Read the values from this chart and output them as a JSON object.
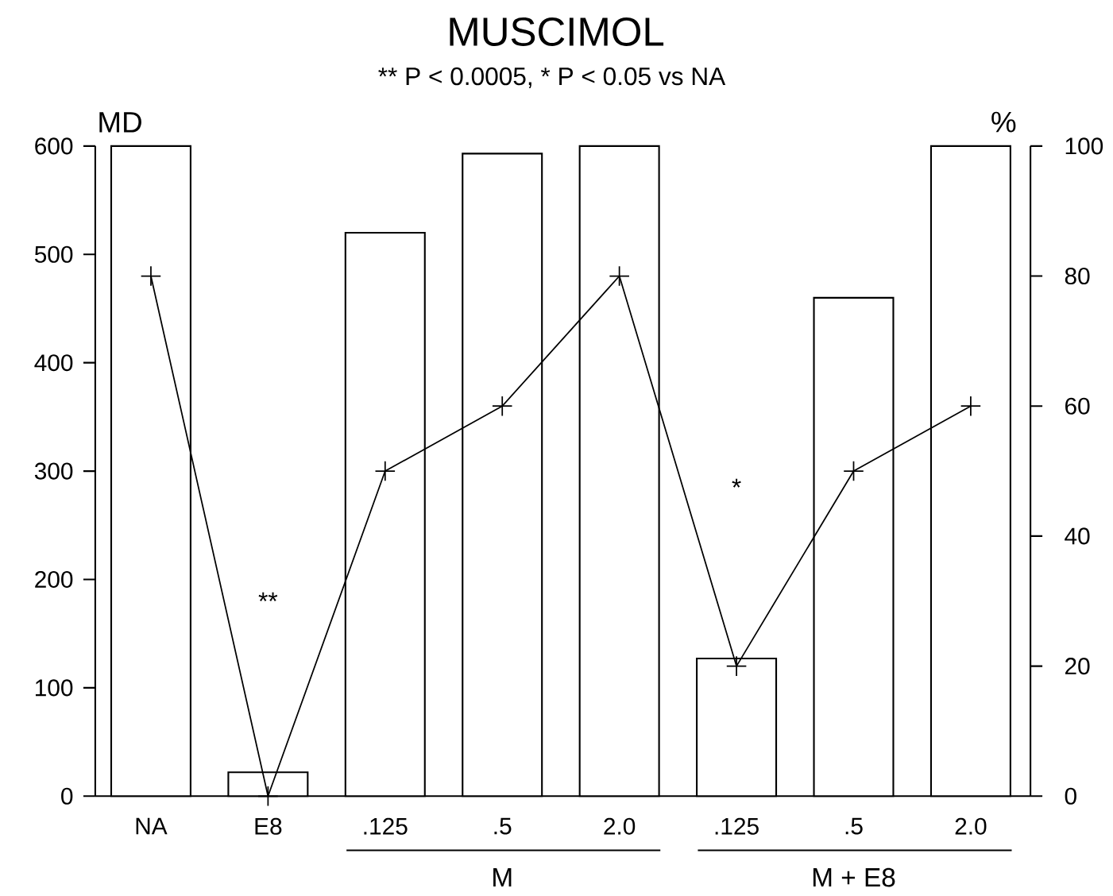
{
  "chart_data": {
    "type": "bar",
    "title": "MUSCIMOL",
    "subtitle": "** P < 0.0005, * P < 0.05 vs NA",
    "ylabel": "MD",
    "y2label": "%",
    "categories": [
      "NA",
      "E8",
      ".125",
      ".5",
      "2.0",
      ".125",
      ".5",
      "2.0"
    ],
    "series": [
      {
        "color": "#ffffff",
        "values": [
          600,
          22,
          520,
          593,
          600,
          127,
          460,
          600
        ]
      },
      {
        "type": "line",
        "axis": "y2",
        "color": "#000000",
        "values": [
          80,
          0,
          50,
          60,
          80,
          20,
          50,
          60
        ]
      }
    ],
    "ylim": [
      0,
      600
    ],
    "yticks": [
      0,
      100,
      200,
      300,
      400,
      500,
      600
    ],
    "y2lim": [
      0,
      100
    ],
    "y2ticks": [
      0,
      20,
      40,
      60,
      80,
      100
    ],
    "marker": "cross",
    "line_style": "solid",
    "annotations": [
      "**",
      "*",
      "M",
      "M + E8"
    ]
  }
}
